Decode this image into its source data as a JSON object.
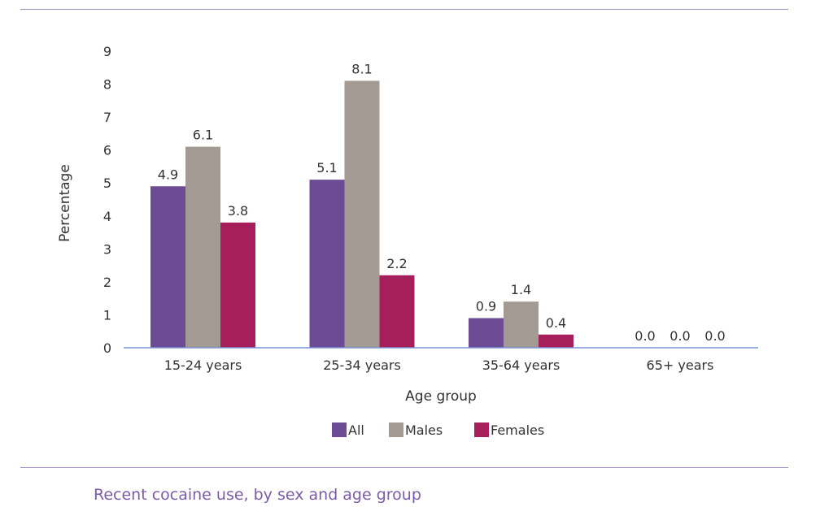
{
  "caption": "Recent cocaine use, by sex and age group",
  "chart_data": {
    "type": "bar",
    "title": "",
    "xlabel": "Age group",
    "ylabel": "Percentage",
    "ylim": [
      0,
      9
    ],
    "yticks": [
      "0",
      "1",
      "2",
      "3",
      "4",
      "5",
      "6",
      "7",
      "8",
      "9"
    ],
    "categories": [
      "15-24 years",
      "25-34 years",
      "35-64 years",
      "65+ years"
    ],
    "series": [
      {
        "name": "All",
        "color": "#6c4b94",
        "values": [
          4.9,
          5.1,
          0.9,
          0.0
        ],
        "labels": [
          "4.9",
          "5.1",
          "0.9",
          "0.0"
        ]
      },
      {
        "name": "Males",
        "color": "#a39a93",
        "values": [
          6.1,
          8.1,
          1.4,
          0.0
        ],
        "labels": [
          "6.1",
          "8.1",
          "1.4",
          "0.0"
        ]
      },
      {
        "name": "Females",
        "color": "#a61f5b",
        "values": [
          3.8,
          2.2,
          0.4,
          0.0
        ],
        "labels": [
          "3.8",
          "2.2",
          "0.4",
          "0.0"
        ]
      }
    ],
    "legend": "bottom",
    "grid": false,
    "axis_color": "#7b93d6"
  }
}
